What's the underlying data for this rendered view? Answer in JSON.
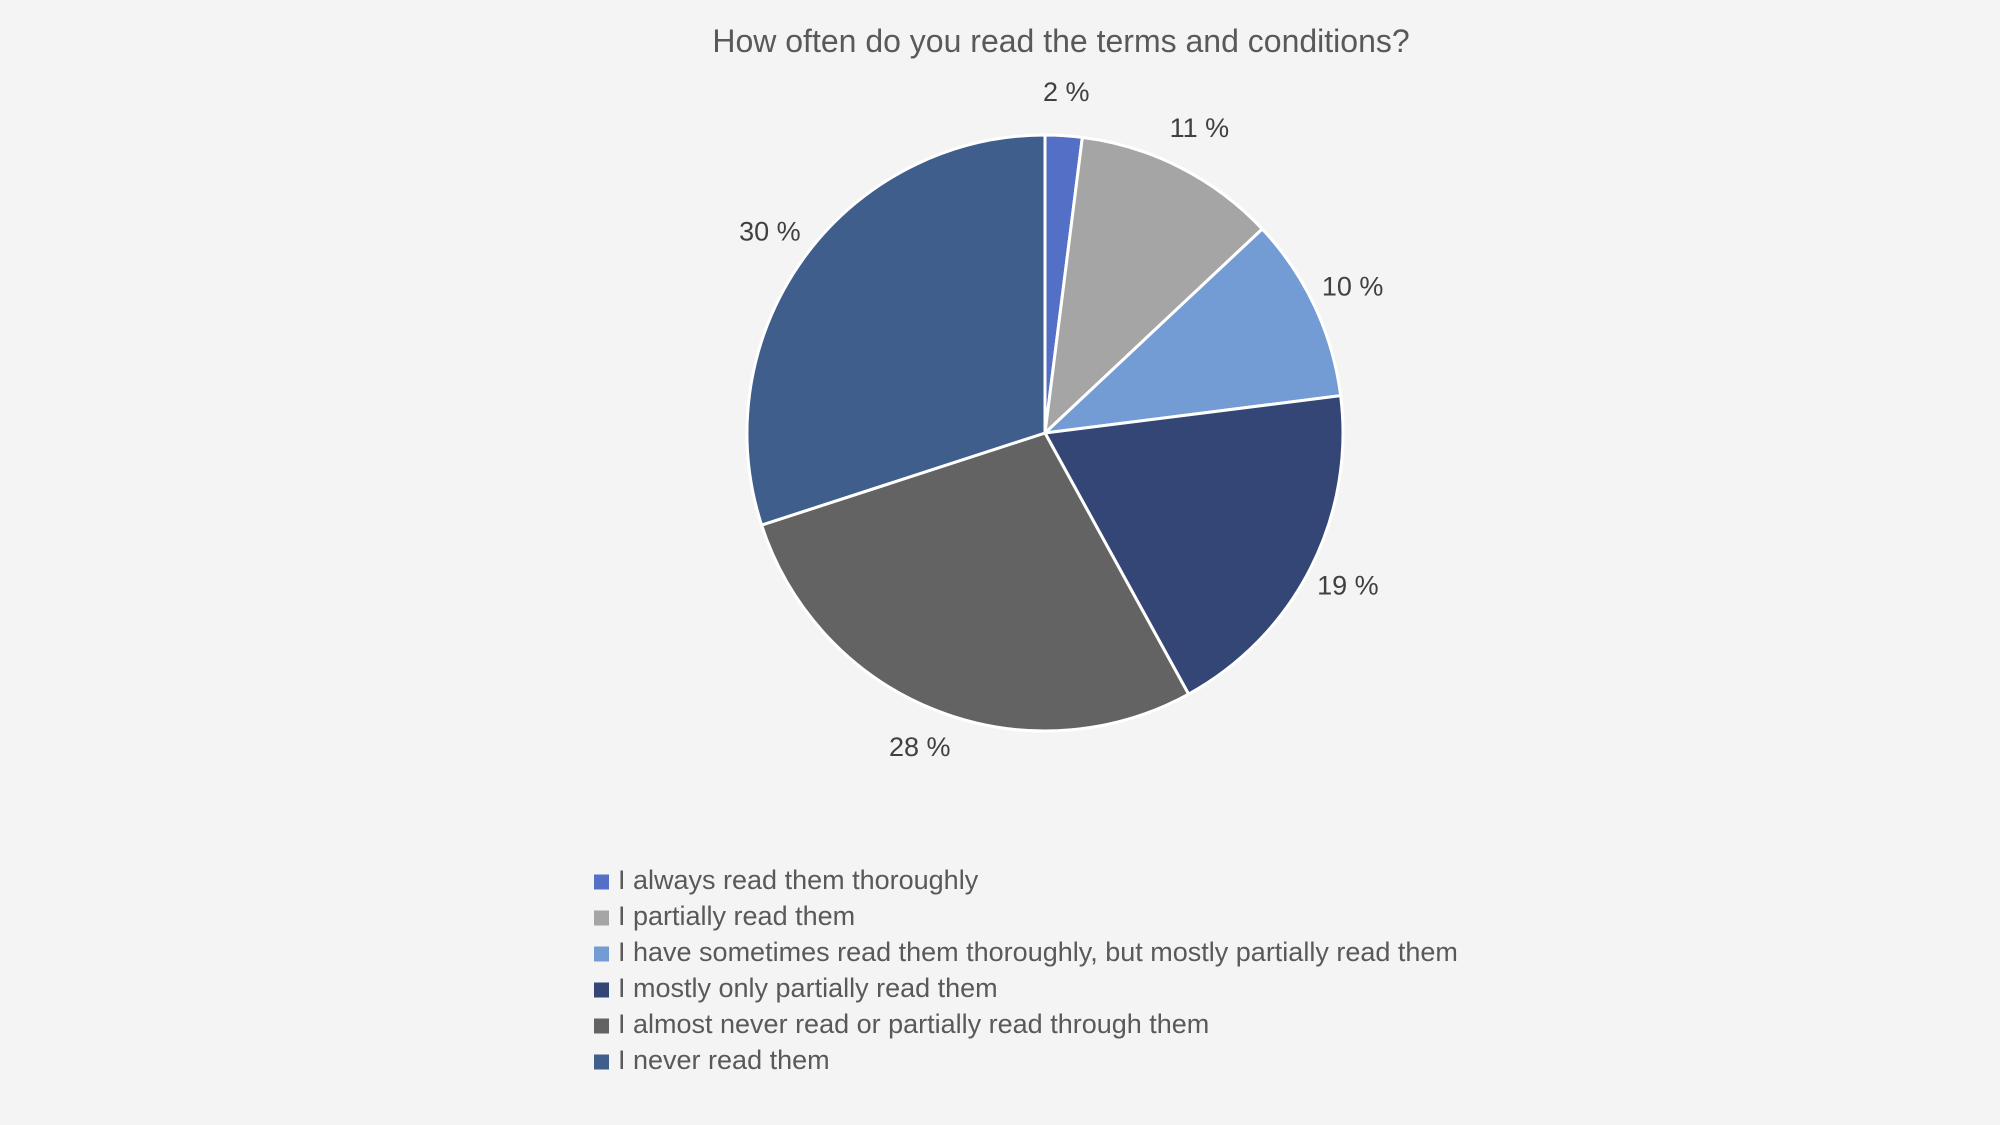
{
  "chart_data": {
    "type": "pie",
    "title": "How often do you read the terms and conditions?",
    "categories": [
      "I always read them thoroughly",
      "I partially read them",
      "I have sometimes read them thoroughly, but mostly partially read them",
      "I mostly only partially read them",
      "I almost never read or partially read through them",
      "I never read them"
    ],
    "values": [
      2,
      11,
      10,
      19,
      28,
      30
    ],
    "value_labels": [
      "2 %",
      "11 %",
      "10 %",
      "19 %",
      "28 %",
      "30 %"
    ],
    "colors": [
      "#5470c6",
      "#a5a5a5",
      "#739bd4",
      "#344675",
      "#636363",
      "#3f5e8c"
    ],
    "start": "12 o'clock",
    "direction": "clockwise",
    "legend_position": "bottom",
    "background": "#f4f4f4"
  }
}
